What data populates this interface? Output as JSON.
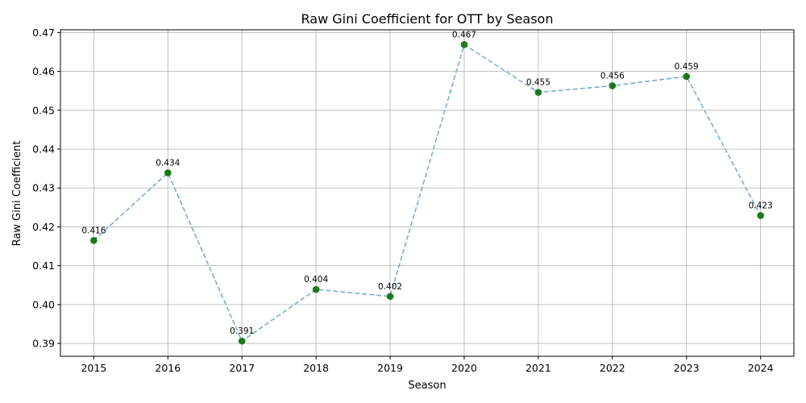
{
  "chart_data": {
    "type": "line",
    "title": "Raw Gini Coefficient for OTT by Season",
    "xlabel": "Season",
    "ylabel": "Raw Gini Coefficient",
    "x": [
      2015,
      2016,
      2017,
      2018,
      2019,
      2020,
      2021,
      2022,
      2023,
      2024
    ],
    "x_tick_labels": [
      "2015",
      "2016",
      "2017",
      "2018",
      "2019",
      "2020",
      "2021",
      "2022",
      "2023",
      "2024"
    ],
    "y_ticks": [
      0.39,
      0.4,
      0.41,
      0.42,
      0.43,
      0.44,
      0.45,
      0.46,
      0.47
    ],
    "y_tick_labels": [
      "0.39",
      "0.40",
      "0.41",
      "0.42",
      "0.43",
      "0.44",
      "0.45",
      "0.46",
      "0.47"
    ],
    "ylim": [
      0.3867,
      0.4707
    ],
    "xlim": [
      2014.55,
      2024.45
    ],
    "series": [
      {
        "values": [
          0.4165,
          0.4339,
          0.3906,
          0.4039,
          0.4021,
          0.4669,
          0.4546,
          0.4563,
          0.4587,
          0.4229
        ],
        "data_labels": [
          "0.416",
          "0.434",
          "0.391",
          "0.404",
          "0.402",
          "0.467",
          "0.455",
          "0.456",
          "0.459",
          "0.423"
        ],
        "line_color": "#7aaed1",
        "line_style": "dashed",
        "marker_color": "#1a7a1a"
      }
    ],
    "grid": true,
    "legend": "none"
  }
}
